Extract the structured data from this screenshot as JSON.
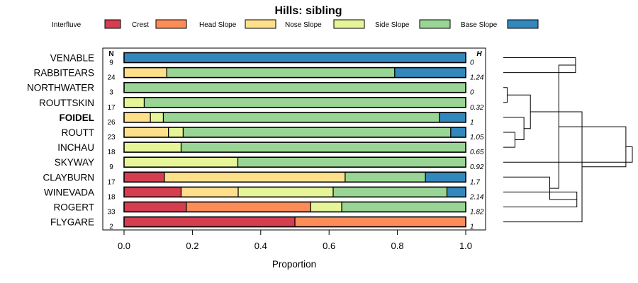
{
  "chart_data": {
    "type": "bar",
    "stacked": true,
    "orientation": "horizontal",
    "title": "Hills: sibling",
    "xlabel": "Proportion",
    "ylabel": "",
    "xlim": [
      0,
      1
    ],
    "xticks": [
      "0.0",
      "0.2",
      "0.4",
      "0.6",
      "0.8",
      "1.0"
    ],
    "n_header": "N",
    "h_header": "H",
    "legend_position": "top",
    "categories": [
      "Interfluve",
      "Crest",
      "Head Slope",
      "Nose Slope",
      "Side Slope",
      "Base Slope"
    ],
    "colors": [
      "#d53e4f",
      "#fc8d59",
      "#fee08b",
      "#e6f598",
      "#99d594",
      "#3288bd"
    ],
    "rows": [
      {
        "name": "VENABLE",
        "n": "9",
        "h": "0",
        "bold": false,
        "values": [
          0,
          0,
          0,
          0,
          0,
          1.0
        ]
      },
      {
        "name": "RABBITEARS",
        "n": "24",
        "h": "1.24",
        "bold": false,
        "values": [
          0,
          0,
          0.125,
          0,
          0.667,
          0.208
        ]
      },
      {
        "name": "NORTHWATER",
        "n": "3",
        "h": "0",
        "bold": false,
        "values": [
          0,
          0,
          0,
          0,
          1.0,
          0
        ]
      },
      {
        "name": "ROUTTSKIN",
        "n": "17",
        "h": "0.32",
        "bold": false,
        "values": [
          0,
          0,
          0,
          0.059,
          0.941,
          0
        ]
      },
      {
        "name": "FOIDEL",
        "n": "26",
        "h": "1",
        "bold": true,
        "values": [
          0,
          0,
          0.077,
          0.038,
          0.808,
          0.077
        ]
      },
      {
        "name": "ROUTT",
        "n": "23",
        "h": "1.05",
        "bold": false,
        "values": [
          0,
          0,
          0.13,
          0.043,
          0.783,
          0.044
        ]
      },
      {
        "name": "INCHAU",
        "n": "18",
        "h": "0.65",
        "bold": false,
        "values": [
          0,
          0,
          0,
          0.167,
          0.833,
          0
        ]
      },
      {
        "name": "SKYWAY",
        "n": "9",
        "h": "0.92",
        "bold": false,
        "values": [
          0,
          0,
          0,
          0.333,
          0.667,
          0
        ]
      },
      {
        "name": "CLAYBURN",
        "n": "17",
        "h": "1.7",
        "bold": false,
        "values": [
          0.118,
          0,
          0.529,
          0,
          0.235,
          0.118
        ]
      },
      {
        "name": "WINEVADA",
        "n": "18",
        "h": "2.14",
        "bold": false,
        "values": [
          0.167,
          0,
          0.167,
          0.278,
          0.333,
          0.055
        ]
      },
      {
        "name": "ROGERT",
        "n": "33",
        "h": "1.82",
        "bold": false,
        "values": [
          0.182,
          0.364,
          0,
          0.091,
          0.363,
          0
        ]
      },
      {
        "name": "FLYGARE",
        "n": "2",
        "h": "1",
        "bold": false,
        "values": [
          0.5,
          0.5,
          0,
          0,
          0,
          0
        ]
      }
    ],
    "dendrogram": {
      "merges": [
        [
          3,
          4,
          0.03
        ],
        [
          6,
          7,
          0.09
        ],
        [
          5,
          14,
          0.16
        ],
        [
          13,
          15,
          0.21
        ],
        [
          1,
          2,
          0.56
        ],
        [
          10,
          11,
          0.57
        ],
        [
          12,
          16,
          0.61
        ],
        [
          9,
          18,
          0.36
        ],
        [
          17,
          20,
          0.43
        ],
        [
          19,
          21,
          0.95
        ],
        [
          8,
          22,
          1.0
        ]
      ],
      "max_height": 1.0
    }
  }
}
